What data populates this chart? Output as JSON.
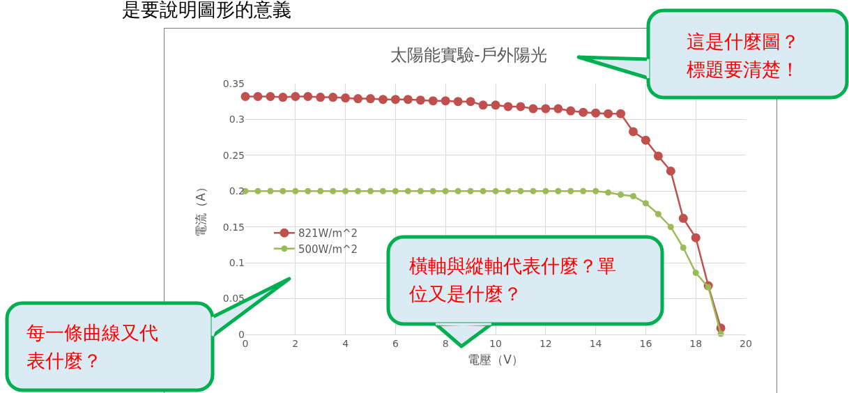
{
  "chart_data": {
    "type": "line",
    "title": "太陽能實驗-戶外陽光",
    "xlabel": "電壓（V）",
    "ylabel": "電流（A）",
    "x": [
      0,
      0.5,
      1,
      1.5,
      2,
      2.5,
      3,
      3.5,
      4,
      4.5,
      5,
      5.5,
      6,
      6.5,
      7,
      7.5,
      8,
      8.5,
      9,
      9.5,
      10,
      10.5,
      11,
      11.5,
      12,
      12.5,
      13,
      13.5,
      14,
      14.5,
      15,
      15.5,
      16,
      16.5,
      17,
      17.5,
      18,
      18.5,
      19
    ],
    "series": [
      {
        "name": "821W/m^2",
        "color": "#c0504d",
        "values": [
          0.332,
          0.332,
          0.332,
          0.331,
          0.332,
          0.332,
          0.331,
          0.331,
          0.33,
          0.329,
          0.329,
          0.328,
          0.328,
          0.328,
          0.327,
          0.326,
          0.326,
          0.325,
          0.325,
          0.32,
          0.32,
          0.318,
          0.318,
          0.315,
          0.315,
          0.315,
          0.312,
          0.31,
          0.309,
          0.308,
          0.308,
          0.283,
          0.271,
          0.249,
          0.228,
          0.162,
          0.135,
          0.068,
          0.009
        ]
      },
      {
        "name": "500W/m^2",
        "color": "#9bbb59",
        "values": [
          0.2,
          0.2,
          0.2,
          0.2,
          0.2,
          0.2,
          0.2,
          0.2,
          0.2,
          0.2,
          0.2,
          0.2,
          0.2,
          0.2,
          0.2,
          0.2,
          0.2,
          0.2,
          0.2,
          0.2,
          0.2,
          0.2,
          0.2,
          0.2,
          0.2,
          0.2,
          0.2,
          0.2,
          0.2,
          0.198,
          0.195,
          0.193,
          0.183,
          0.168,
          0.15,
          0.121,
          0.086,
          0.066,
          0.001
        ]
      }
    ],
    "xlim": [
      0,
      20
    ],
    "xticks": [
      0,
      2,
      4,
      6,
      8,
      10,
      12,
      14,
      16,
      18,
      20
    ],
    "ylim": [
      0,
      0.35
    ],
    "yticks": [
      0,
      0.05,
      0.1,
      0.15,
      0.2,
      0.25,
      0.3,
      0.35
    ],
    "grid": true,
    "legend": "left",
    "marker": "circle",
    "line_style": "solid",
    "annotations": [
      "是要說明圖形的意義",
      "這是什麼圖？標題要清楚！",
      "橫軸與縱軸代表什麼？單位又是什麼？",
      "每一條曲線又代表什麼？"
    ]
  }
}
